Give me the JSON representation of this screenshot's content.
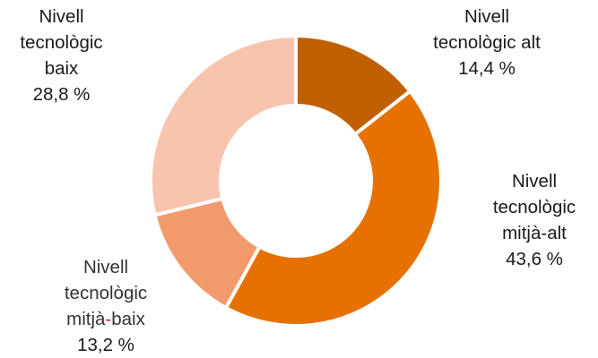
{
  "chart_data": {
    "type": "pie",
    "donut": true,
    "title": "",
    "slices": [
      {
        "name_lines": [
          "Nivell",
          "tecnològic alt"
        ],
        "value": 14.4,
        "value_label": "14,4 %",
        "color": "#C06000"
      },
      {
        "name_lines": [
          "Nivell",
          "tecnològic",
          "mitjà-alt"
        ],
        "value": 43.6,
        "value_label": "43,6 %",
        "color": "#E57200"
      },
      {
        "name_lines": [
          "Nivell",
          "tecnològic",
          "mitjà",
          "-",
          "baix"
        ],
        "value": 13.2,
        "value_label": "13,2 %",
        "color": "#F29A6C"
      },
      {
        "name_lines": [
          "Nivell",
          "tecnològic",
          "baix"
        ],
        "value": 28.8,
        "value_label": "28,8 %",
        "color": "#F8C4AE"
      }
    ]
  }
}
